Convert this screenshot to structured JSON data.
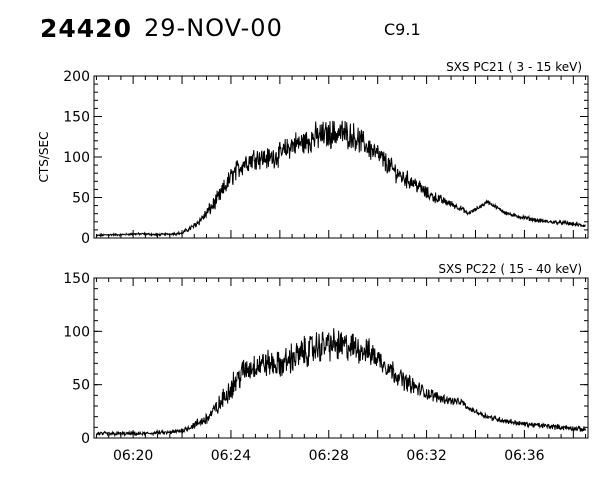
{
  "header": {
    "event_id": "24420",
    "date": "29-NOV-00",
    "flare_class": "C9.1"
  },
  "style": {
    "line_color": "#000000",
    "background": "#ffffff"
  },
  "chart_data": [
    {
      "type": "line",
      "title": "SXS PC21  (  3 - 15 keV)",
      "ylabel": "CTS/SEC",
      "xlabel": "",
      "xlim": [
        "06:18:24",
        "06:38:36"
      ],
      "ylim": [
        0,
        200
      ],
      "yticks": [
        0,
        50,
        100,
        150,
        200
      ],
      "grid": false,
      "series": [
        {
          "x": [
            "06:18:30",
            "06:19:00",
            "06:19:30",
            "06:20:00",
            "06:20:30",
            "06:21:00",
            "06:21:30",
            "06:22:00",
            "06:22:30",
            "06:23:00",
            "06:23:30",
            "06:24:00",
            "06:24:30",
            "06:25:00",
            "06:25:30",
            "06:26:00",
            "06:26:30",
            "06:27:00",
            "06:27:30",
            "06:28:00",
            "06:28:30",
            "06:29:00",
            "06:29:30",
            "06:30:00",
            "06:30:30",
            "06:31:00",
            "06:31:30",
            "06:32:00",
            "06:32:30",
            "06:33:00",
            "06:33:30",
            "06:33:40",
            "06:34:00",
            "06:34:30",
            "06:35:00",
            "06:35:30",
            "06:36:00",
            "06:36:30",
            "06:37:00",
            "06:37:30",
            "06:38:00",
            "06:38:30"
          ],
          "values": [
            3,
            4,
            4,
            5,
            5,
            4,
            5,
            6,
            15,
            30,
            50,
            75,
            92,
            100,
            98,
            103,
            115,
            118,
            125,
            128,
            130,
            126,
            115,
            103,
            88,
            75,
            68,
            55,
            48,
            42,
            35,
            30,
            35,
            45,
            35,
            28,
            25,
            22,
            20,
            19,
            17,
            15
          ],
          "noise": [
            2,
            2,
            2,
            2,
            2,
            2,
            2,
            3,
            6,
            12,
            16,
            20,
            22,
            22,
            22,
            22,
            24,
            26,
            28,
            28,
            28,
            26,
            24,
            22,
            20,
            18,
            16,
            13,
            10,
            7,
            5,
            3,
            4,
            4,
            4,
            4,
            4,
            4,
            4,
            4,
            4,
            4
          ]
        }
      ]
    },
    {
      "type": "line",
      "title": "SXS PC22  ( 15 - 40 keV)",
      "ylabel": "",
      "xlabel": "",
      "xlim": [
        "06:18:24",
        "06:38:36"
      ],
      "ylim": [
        0,
        150
      ],
      "yticks": [
        0,
        50,
        100,
        150
      ],
      "xticks": [
        "06:20",
        "06:24",
        "06:28",
        "06:32",
        "06:36"
      ],
      "grid": false,
      "series": [
        {
          "x": [
            "06:18:30",
            "06:19:00",
            "06:19:30",
            "06:20:00",
            "06:20:30",
            "06:21:00",
            "06:21:30",
            "06:22:00",
            "06:22:30",
            "06:23:00",
            "06:23:30",
            "06:24:00",
            "06:24:30",
            "06:25:00",
            "06:25:30",
            "06:26:00",
            "06:26:30",
            "06:27:00",
            "06:27:30",
            "06:28:00",
            "06:28:30",
            "06:29:00",
            "06:29:30",
            "06:30:00",
            "06:30:30",
            "06:31:00",
            "06:31:30",
            "06:32:00",
            "06:32:30",
            "06:33:00",
            "06:33:30",
            "06:33:40",
            "06:34:00",
            "06:34:30",
            "06:35:00",
            "06:35:30",
            "06:36:00",
            "06:36:30",
            "06:37:00",
            "06:37:30",
            "06:38:00",
            "06:38:30"
          ],
          "values": [
            4,
            4,
            4,
            4,
            4,
            5,
            5,
            7,
            12,
            18,
            30,
            48,
            62,
            68,
            70,
            68,
            75,
            80,
            85,
            88,
            86,
            85,
            82,
            75,
            65,
            55,
            48,
            42,
            38,
            35,
            33,
            28,
            25,
            20,
            17,
            15,
            13,
            12,
            11,
            10,
            9,
            8
          ],
          "noise": [
            3,
            3,
            3,
            3,
            3,
            3,
            3,
            4,
            6,
            10,
            14,
            18,
            20,
            20,
            20,
            20,
            22,
            24,
            24,
            24,
            24,
            22,
            20,
            18,
            16,
            14,
            12,
            10,
            8,
            6,
            5,
            3,
            4,
            4,
            4,
            4,
            4,
            4,
            4,
            4,
            4,
            4
          ]
        }
      ]
    }
  ]
}
